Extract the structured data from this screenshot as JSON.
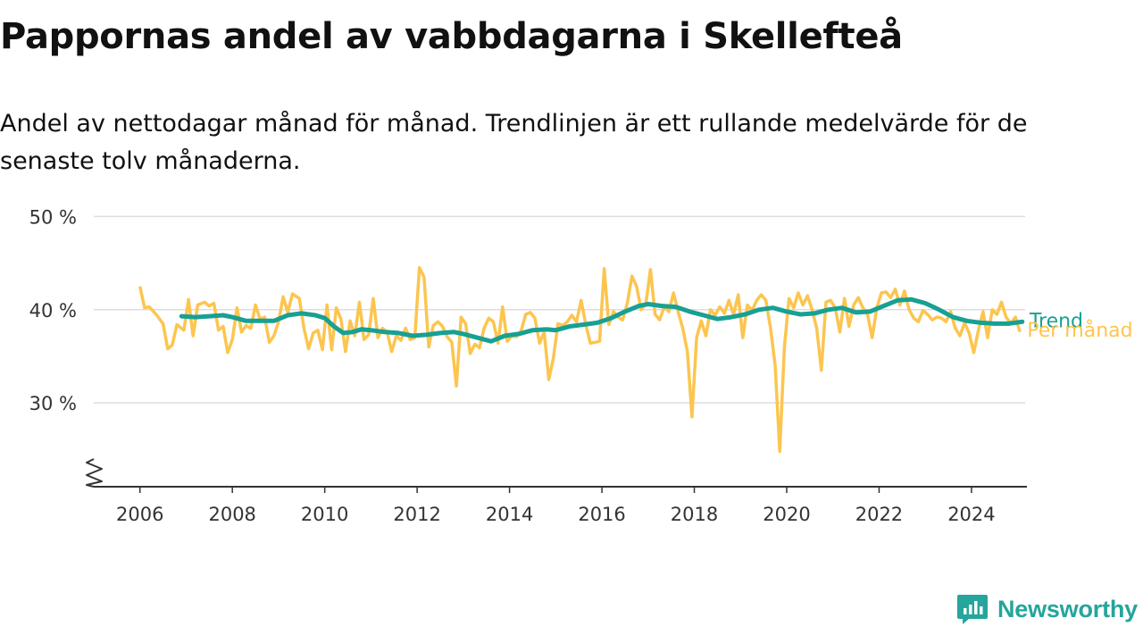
{
  "header": {
    "title": "Pappornas andel av vabbdagarna i Skellefteå",
    "subtitle": "Andel av nettodagar månad för månad. Trendlinjen är ett rullande medelvärde för de senaste tolv månaderna."
  },
  "brand": {
    "name": "Newsworthy",
    "icon": "newsworthy-logo-icon"
  },
  "colors": {
    "monthly": "#fcc54f",
    "trend": "#17a093",
    "grid": "#dddddd",
    "axis": "#333333"
  },
  "chart_data": {
    "type": "line",
    "x_ticks": [
      "2006",
      "2008",
      "2010",
      "2012",
      "2014",
      "2016",
      "2018",
      "2020",
      "2022",
      "2024"
    ],
    "y_ticks": [
      {
        "value": 30,
        "label": "30 %"
      },
      {
        "value": 40,
        "label": "40 %"
      },
      {
        "value": 50,
        "label": "50 %"
      }
    ],
    "xlim": [
      2005.0,
      2025.2
    ],
    "ylim": [
      21,
      51
    ],
    "y_axis_break": true,
    "grid": true,
    "series": [
      {
        "name": "Per månad",
        "color": "#fcc54f",
        "points": [
          [
            2006.0,
            42.5
          ],
          [
            2006.1,
            40.2
          ],
          [
            2006.2,
            40.3
          ],
          [
            2006.35,
            39.5
          ],
          [
            2006.5,
            38.5
          ],
          [
            2006.6,
            35.8
          ],
          [
            2006.7,
            36.2
          ],
          [
            2006.8,
            38.4
          ],
          [
            2006.95,
            37.8
          ],
          [
            2007.05,
            41.1
          ],
          [
            2007.15,
            37.2
          ],
          [
            2007.25,
            40.5
          ],
          [
            2007.4,
            40.8
          ],
          [
            2007.5,
            40.4
          ],
          [
            2007.6,
            40.7
          ],
          [
            2007.7,
            37.8
          ],
          [
            2007.8,
            38.2
          ],
          [
            2007.9,
            35.4
          ],
          [
            2008.0,
            36.8
          ],
          [
            2008.1,
            40.2
          ],
          [
            2008.2,
            37.6
          ],
          [
            2008.3,
            38.3
          ],
          [
            2008.4,
            38.0
          ],
          [
            2008.5,
            40.5
          ],
          [
            2008.6,
            39.0
          ],
          [
            2008.7,
            39.2
          ],
          [
            2008.8,
            36.5
          ],
          [
            2008.9,
            37.2
          ],
          [
            2009.0,
            38.7
          ],
          [
            2009.1,
            41.4
          ],
          [
            2009.2,
            39.7
          ],
          [
            2009.3,
            41.7
          ],
          [
            2009.45,
            41.2
          ],
          [
            2009.55,
            38.0
          ],
          [
            2009.65,
            35.8
          ],
          [
            2009.75,
            37.5
          ],
          [
            2009.85,
            37.8
          ],
          [
            2009.95,
            35.7
          ],
          [
            2010.05,
            40.5
          ],
          [
            2010.15,
            35.7
          ],
          [
            2010.25,
            40.2
          ],
          [
            2010.35,
            39.0
          ],
          [
            2010.45,
            35.5
          ],
          [
            2010.55,
            38.8
          ],
          [
            2010.65,
            37.2
          ],
          [
            2010.75,
            40.8
          ],
          [
            2010.85,
            36.8
          ],
          [
            2010.95,
            37.3
          ],
          [
            2011.05,
            41.2
          ],
          [
            2011.15,
            37.0
          ],
          [
            2011.25,
            38.0
          ],
          [
            2011.35,
            37.6
          ],
          [
            2011.45,
            35.5
          ],
          [
            2011.55,
            37.2
          ],
          [
            2011.65,
            36.7
          ],
          [
            2011.75,
            38.0
          ],
          [
            2011.85,
            36.8
          ],
          [
            2011.95,
            37.0
          ],
          [
            2012.05,
            44.5
          ],
          [
            2012.15,
            43.5
          ],
          [
            2012.25,
            36.0
          ],
          [
            2012.35,
            38.3
          ],
          [
            2012.45,
            38.7
          ],
          [
            2012.55,
            38.2
          ],
          [
            2012.65,
            37.1
          ],
          [
            2012.75,
            36.5
          ],
          [
            2012.85,
            31.8
          ],
          [
            2012.95,
            39.2
          ],
          [
            2013.05,
            38.5
          ],
          [
            2013.15,
            35.3
          ],
          [
            2013.25,
            36.3
          ],
          [
            2013.35,
            35.9
          ],
          [
            2013.45,
            38.0
          ],
          [
            2013.55,
            39.1
          ],
          [
            2013.65,
            38.7
          ],
          [
            2013.75,
            36.4
          ],
          [
            2013.85,
            40.3
          ],
          [
            2013.95,
            36.6
          ],
          [
            2014.05,
            37.2
          ],
          [
            2014.15,
            37.1
          ],
          [
            2014.25,
            37.7
          ],
          [
            2014.35,
            39.5
          ],
          [
            2014.45,
            39.7
          ],
          [
            2014.55,
            39.1
          ],
          [
            2014.65,
            36.4
          ],
          [
            2014.75,
            37.6
          ],
          [
            2014.85,
            32.5
          ],
          [
            2014.95,
            34.8
          ],
          [
            2015.05,
            38.5
          ],
          [
            2015.15,
            38.3
          ],
          [
            2015.25,
            38.7
          ],
          [
            2015.35,
            39.4
          ],
          [
            2015.45,
            38.7
          ],
          [
            2015.55,
            41.0
          ],
          [
            2015.65,
            38.4
          ],
          [
            2015.75,
            36.4
          ],
          [
            2015.85,
            36.5
          ],
          [
            2015.95,
            36.6
          ],
          [
            2016.05,
            44.4
          ],
          [
            2016.15,
            38.4
          ],
          [
            2016.25,
            39.8
          ],
          [
            2016.35,
            39.2
          ],
          [
            2016.45,
            38.9
          ],
          [
            2016.55,
            40.7
          ],
          [
            2016.65,
            43.6
          ],
          [
            2016.75,
            42.5
          ],
          [
            2016.85,
            40.0
          ],
          [
            2016.95,
            40.6
          ],
          [
            2017.05,
            44.3
          ],
          [
            2017.15,
            39.5
          ],
          [
            2017.25,
            38.9
          ],
          [
            2017.35,
            40.3
          ],
          [
            2017.45,
            39.8
          ],
          [
            2017.55,
            41.8
          ],
          [
            2017.65,
            39.8
          ],
          [
            2017.75,
            38.0
          ],
          [
            2017.85,
            35.5
          ],
          [
            2017.95,
            28.5
          ],
          [
            2018.05,
            37.0
          ],
          [
            2018.15,
            38.8
          ],
          [
            2018.25,
            37.2
          ],
          [
            2018.35,
            40.0
          ],
          [
            2018.45,
            39.4
          ],
          [
            2018.55,
            40.3
          ],
          [
            2018.65,
            39.6
          ],
          [
            2018.75,
            41.0
          ],
          [
            2018.85,
            39.5
          ],
          [
            2018.95,
            41.6
          ],
          [
            2019.05,
            37.0
          ],
          [
            2019.15,
            40.5
          ],
          [
            2019.25,
            39.9
          ],
          [
            2019.35,
            41.0
          ],
          [
            2019.45,
            41.6
          ],
          [
            2019.55,
            41.0
          ],
          [
            2019.65,
            38.0
          ],
          [
            2019.75,
            34.0
          ],
          [
            2019.85,
            24.8
          ],
          [
            2019.95,
            36.0
          ],
          [
            2020.05,
            41.2
          ],
          [
            2020.15,
            40.2
          ],
          [
            2020.25,
            41.8
          ],
          [
            2020.35,
            40.5
          ],
          [
            2020.45,
            41.5
          ],
          [
            2020.55,
            40.0
          ],
          [
            2020.65,
            38.0
          ],
          [
            2020.75,
            33.5
          ],
          [
            2020.85,
            40.8
          ],
          [
            2020.95,
            41.0
          ],
          [
            2021.05,
            40.2
          ],
          [
            2021.15,
            37.6
          ],
          [
            2021.25,
            41.2
          ],
          [
            2021.35,
            38.2
          ],
          [
            2021.45,
            40.5
          ],
          [
            2021.55,
            41.3
          ],
          [
            2021.65,
            40.2
          ],
          [
            2021.75,
            39.5
          ],
          [
            2021.85,
            37.0
          ],
          [
            2021.95,
            40.2
          ],
          [
            2022.05,
            41.8
          ],
          [
            2022.15,
            41.9
          ],
          [
            2022.25,
            41.3
          ],
          [
            2022.35,
            42.2
          ],
          [
            2022.45,
            40.5
          ],
          [
            2022.55,
            42.0
          ],
          [
            2022.65,
            40.0
          ],
          [
            2022.75,
            39.1
          ],
          [
            2022.85,
            38.7
          ],
          [
            2022.95,
            39.9
          ],
          [
            2023.05,
            39.5
          ],
          [
            2023.15,
            38.9
          ],
          [
            2023.25,
            39.2
          ],
          [
            2023.35,
            39.1
          ],
          [
            2023.45,
            38.7
          ],
          [
            2023.55,
            39.8
          ],
          [
            2023.65,
            38.0
          ],
          [
            2023.75,
            37.2
          ],
          [
            2023.85,
            38.6
          ],
          [
            2023.95,
            37.5
          ],
          [
            2024.05,
            35.4
          ],
          [
            2024.15,
            37.8
          ],
          [
            2024.25,
            39.8
          ],
          [
            2024.35,
            37.0
          ],
          [
            2024.45,
            40.0
          ],
          [
            2024.55,
            39.5
          ],
          [
            2024.65,
            40.8
          ],
          [
            2024.75,
            39.2
          ],
          [
            2024.85,
            38.5
          ],
          [
            2024.95,
            39.2
          ],
          [
            2025.05,
            37.6
          ]
        ]
      },
      {
        "name": "Trend",
        "color": "#17a093",
        "points": [
          [
            2006.9,
            39.3
          ],
          [
            2007.2,
            39.2
          ],
          [
            2007.5,
            39.3
          ],
          [
            2007.8,
            39.4
          ],
          [
            2008.0,
            39.2
          ],
          [
            2008.3,
            38.8
          ],
          [
            2008.6,
            38.8
          ],
          [
            2008.9,
            38.8
          ],
          [
            2009.2,
            39.4
          ],
          [
            2009.5,
            39.6
          ],
          [
            2009.8,
            39.4
          ],
          [
            2010.0,
            39.1
          ],
          [
            2010.2,
            38.2
          ],
          [
            2010.4,
            37.5
          ],
          [
            2010.6,
            37.6
          ],
          [
            2010.8,
            37.9
          ],
          [
            2011.0,
            37.8
          ],
          [
            2011.3,
            37.6
          ],
          [
            2011.6,
            37.5
          ],
          [
            2011.9,
            37.2
          ],
          [
            2012.2,
            37.3
          ],
          [
            2012.5,
            37.5
          ],
          [
            2012.8,
            37.6
          ],
          [
            2013.0,
            37.4
          ],
          [
            2013.3,
            37.0
          ],
          [
            2013.6,
            36.6
          ],
          [
            2013.9,
            37.2
          ],
          [
            2014.2,
            37.4
          ],
          [
            2014.5,
            37.8
          ],
          [
            2014.8,
            37.9
          ],
          [
            2015.0,
            37.8
          ],
          [
            2015.3,
            38.2
          ],
          [
            2015.6,
            38.4
          ],
          [
            2015.9,
            38.6
          ],
          [
            2016.2,
            39.1
          ],
          [
            2016.5,
            39.8
          ],
          [
            2016.8,
            40.4
          ],
          [
            2017.0,
            40.6
          ],
          [
            2017.3,
            40.4
          ],
          [
            2017.6,
            40.3
          ],
          [
            2017.9,
            39.8
          ],
          [
            2018.2,
            39.4
          ],
          [
            2018.5,
            39.0
          ],
          [
            2018.8,
            39.2
          ],
          [
            2019.1,
            39.5
          ],
          [
            2019.4,
            40.0
          ],
          [
            2019.7,
            40.2
          ],
          [
            2020.0,
            39.8
          ],
          [
            2020.3,
            39.5
          ],
          [
            2020.6,
            39.6
          ],
          [
            2020.9,
            40.0
          ],
          [
            2021.2,
            40.2
          ],
          [
            2021.5,
            39.7
          ],
          [
            2021.8,
            39.8
          ],
          [
            2022.1,
            40.4
          ],
          [
            2022.4,
            41.0
          ],
          [
            2022.7,
            41.1
          ],
          [
            2023.0,
            40.7
          ],
          [
            2023.3,
            40.0
          ],
          [
            2023.6,
            39.2
          ],
          [
            2023.9,
            38.8
          ],
          [
            2024.2,
            38.6
          ],
          [
            2024.5,
            38.5
          ],
          [
            2024.8,
            38.5
          ],
          [
            2025.1,
            38.7
          ]
        ]
      }
    ]
  }
}
